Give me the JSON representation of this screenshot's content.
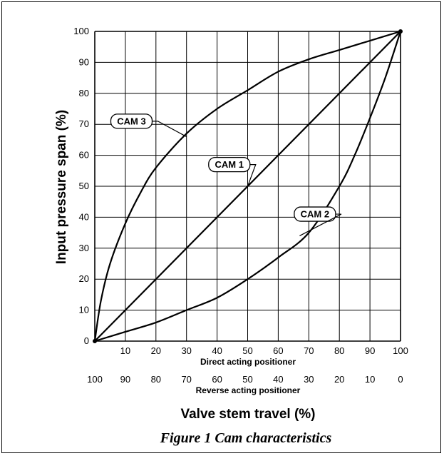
{
  "chart_data": {
    "type": "line",
    "ylabel": "Input pressure span (%)",
    "xlabel": "Valve stem travel (%)",
    "x_axis_primary_label": "Direct acting positioner",
    "x_axis_secondary_label": "Reverse acting positioner",
    "caption": "Figure 1  Cam characteristics",
    "xlim": [
      0,
      100
    ],
    "ylim": [
      0,
      100
    ],
    "grid": true,
    "y_ticks": [
      "0",
      "10",
      "20",
      "30",
      "40",
      "50",
      "60",
      "70",
      "80",
      "90",
      "100"
    ],
    "x_ticks_direct": [
      "10",
      "20",
      "30",
      "40",
      "50",
      "60",
      "70",
      "80",
      "90",
      "100"
    ],
    "x_ticks_reverse": [
      "100",
      "90",
      "80",
      "70",
      "60",
      "50",
      "40",
      "30",
      "20",
      "10",
      "0"
    ],
    "x_ticks_reverse_values": [
      0,
      10,
      20,
      30,
      40,
      50,
      60,
      70,
      80,
      90,
      100
    ],
    "series": [
      {
        "name": "CAM 3",
        "x": [
          0,
          2,
          5,
          10,
          15,
          20,
          30,
          40,
          50,
          60,
          70,
          80,
          90,
          100
        ],
        "y": [
          0,
          13,
          25,
          38,
          48,
          56,
          67,
          75,
          81,
          87,
          91,
          94,
          97,
          100
        ]
      },
      {
        "name": "CAM 1",
        "x": [
          0,
          100
        ],
        "y": [
          0,
          100
        ]
      },
      {
        "name": "CAM 2",
        "x": [
          0,
          10,
          20,
          30,
          40,
          50,
          60,
          70,
          80,
          85,
          90,
          95,
          100
        ],
        "y": [
          0,
          3,
          6,
          10,
          14,
          20,
          27,
          35,
          50,
          60,
          72,
          85,
          100
        ]
      }
    ],
    "annotations": [
      {
        "text": "CAM 3",
        "series": "CAM 3",
        "label_at": [
          12,
          71
        ],
        "arrow_to": [
          30,
          66
        ]
      },
      {
        "text": "CAM 1",
        "series": "CAM 1",
        "label_at": [
          44,
          57
        ],
        "arrow_to": [
          50,
          50
        ]
      },
      {
        "text": "CAM 2",
        "series": "CAM 2",
        "label_at": [
          72,
          41
        ],
        "arrow_to": [
          67,
          34
        ]
      }
    ],
    "colors": {
      "line": "#000000",
      "grid": "#000000",
      "background": "#ffffff"
    }
  }
}
